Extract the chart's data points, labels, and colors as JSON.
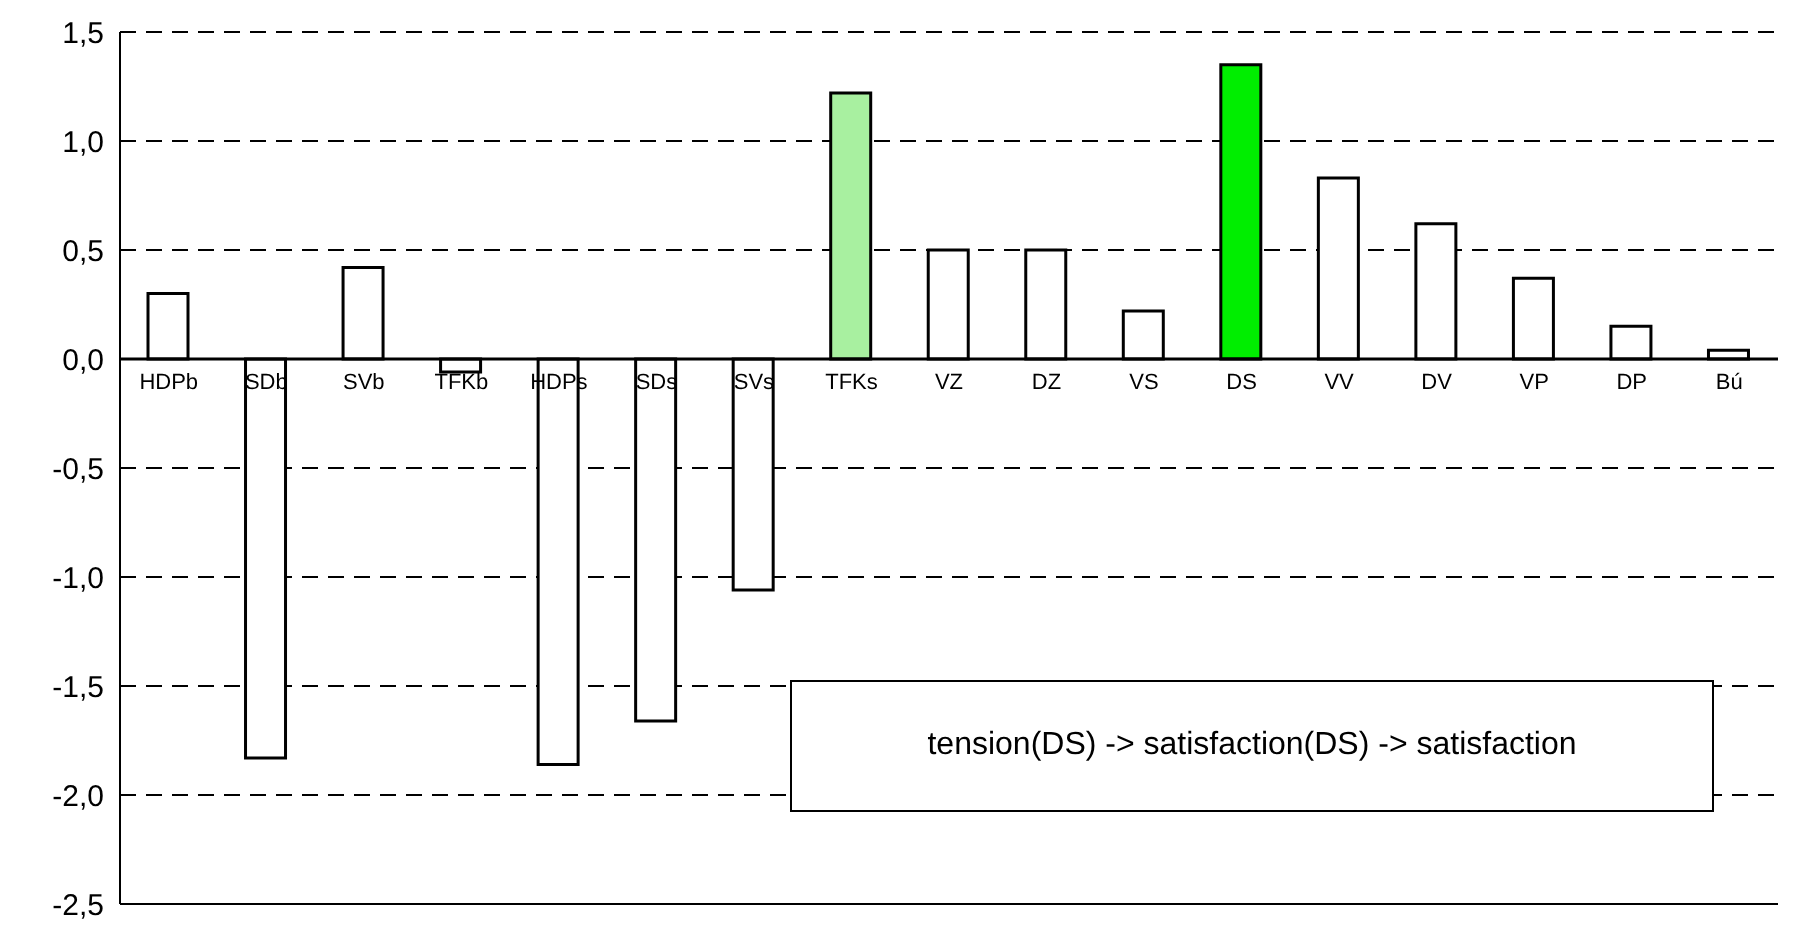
{
  "chart_data": {
    "type": "bar",
    "categories": [
      "HDPb",
      "SDb",
      "SVb",
      "TFKb",
      "HDPs",
      "SDs",
      "SVs",
      "TFKs",
      "VZ",
      "DZ",
      "VS",
      "DS",
      "VV",
      "DV",
      "VP",
      "DP",
      "Bú"
    ],
    "values": [
      0.3,
      -1.83,
      0.42,
      -0.06,
      -1.86,
      -1.66,
      -1.06,
      1.22,
      0.5,
      0.5,
      0.22,
      1.35,
      0.83,
      0.62,
      0.37,
      0.15,
      0.04
    ],
    "colors": [
      "#ffffff",
      "#ffffff",
      "#ffffff",
      "#ffffff",
      "#ffffff",
      "#ffffff",
      "#ffffff",
      "#a8f0a0",
      "#ffffff",
      "#ffffff",
      "#ffffff",
      "#00ee00",
      "#ffffff",
      "#ffffff",
      "#ffffff",
      "#ffffff",
      "#ffffff"
    ],
    "ylim": [
      -2.5,
      1.5
    ],
    "yticks": [
      {
        "value": -2.5,
        "label": "-2,5"
      },
      {
        "value": -2,
        "label": "-2,0"
      },
      {
        "value": -1.5,
        "label": "-1,5"
      },
      {
        "value": -1,
        "label": "-1,0"
      },
      {
        "value": -0.5,
        "label": "-0,5"
      },
      {
        "value": 0,
        "label": "0,0"
      },
      {
        "value": 0.5,
        "label": "0,5"
      },
      {
        "value": 1,
        "label": "1,0"
      },
      {
        "value": 1.5,
        "label": "1,5"
      }
    ],
    "grid": "y",
    "annotations": [
      "tension(DS) -> satisfaction(DS) -> satisfaction"
    ]
  }
}
